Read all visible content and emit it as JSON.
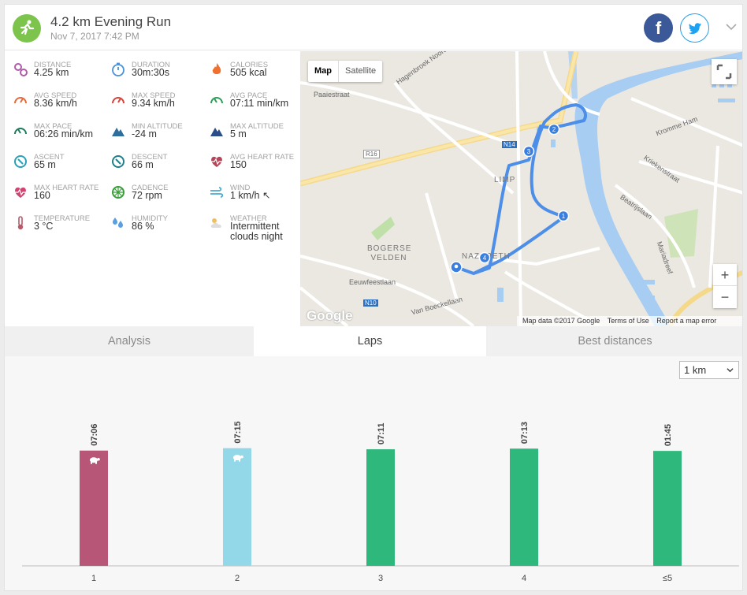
{
  "header": {
    "title": "4.2 km Evening Run",
    "subtitle": "Nov 7, 2017 7:42 PM",
    "facebook_label": "f"
  },
  "stats": [
    {
      "label": "DISTANCE",
      "value": "4.25 km",
      "icon": "distance-icon",
      "color": "#b05ba8"
    },
    {
      "label": "DURATION",
      "value": "30m:30s",
      "icon": "stopwatch-icon",
      "color": "#4a90d9"
    },
    {
      "label": "CALORIES",
      "value": "505 kcal",
      "icon": "flame-icon",
      "color": "#f07030"
    },
    {
      "label": "AVG SPEED",
      "value": "8.36 km/h",
      "icon": "speedometer-icon",
      "color": "#e86a3c"
    },
    {
      "label": "MAX SPEED",
      "value": "9.34 km/h",
      "icon": "speedometer-icon",
      "color": "#d9443a"
    },
    {
      "label": "AVG PACE",
      "value": "07:11 min/km",
      "icon": "pace-gauge-icon",
      "color": "#2e9e5a"
    },
    {
      "label": "MAX PACE",
      "value": "06:26 min/km",
      "icon": "pace-gauge-icon",
      "color": "#1f7d5e"
    },
    {
      "label": "MIN ALTITUDE",
      "value": "-24 m",
      "icon": "mountain-icon",
      "color": "#2d6e9e"
    },
    {
      "label": "MAX ALTITUDE",
      "value": "5 m",
      "icon": "mountain-icon",
      "color": "#2a4e8a"
    },
    {
      "label": "ASCENT",
      "value": "65 m",
      "icon": "compass-icon",
      "color": "#2aa0b8"
    },
    {
      "label": "DESCENT",
      "value": "66 m",
      "icon": "compass-icon",
      "color": "#1f7f8a"
    },
    {
      "label": "AVG HEART RATE",
      "value": "150",
      "icon": "heart-rate-icon",
      "color": "#b5465a"
    },
    {
      "label": "MAX HEART RATE",
      "value": "160",
      "icon": "heart-rate-icon",
      "color": "#d04470"
    },
    {
      "label": "CADENCE",
      "value": "72 rpm",
      "icon": "cadence-wheel-icon",
      "color": "#3a9e3a"
    },
    {
      "label": "WIND",
      "value": "1 km/h ↖",
      "icon": "wind-icon",
      "color": "#4aaad0"
    },
    {
      "label": "TEMPERATURE",
      "value": "3 °C",
      "icon": "thermometer-icon",
      "color": "#b85a6a"
    },
    {
      "label": "HUMIDITY",
      "value": "86 %",
      "icon": "humidity-icon",
      "color": "#5aa0e0"
    },
    {
      "label": "WEATHER",
      "value": "Intermittent\nclouds night",
      "icon": "weather-cloud-icon",
      "color": "#f0c060"
    }
  ],
  "map": {
    "map_label": "Map",
    "satellite_label": "Satellite",
    "zoom_in": "+",
    "zoom_out": "−",
    "google_logo": "Google",
    "footer": {
      "data": "Map data ©2017 Google",
      "terms": "Terms of Use",
      "report": "Report a map error"
    },
    "places": [
      "Paaiestraat",
      "Hagenbroek Noord",
      "R16",
      "N14",
      "LIMP",
      "BOGERSE VELDEN",
      "NAZARETH",
      "Eeuwfeestlaan",
      "N10",
      "Van Boeckellaan",
      "Kromme Ham",
      "Kriekenstraat",
      "Beatrijslaan",
      "Mariadreef"
    ],
    "lap_markers": [
      "1",
      "2",
      "3",
      "4"
    ]
  },
  "tabs": [
    {
      "label": "Analysis",
      "active": false
    },
    {
      "label": "Laps",
      "active": true
    },
    {
      "label": "Best distances",
      "active": false
    }
  ],
  "lap_select": {
    "value": "1 km"
  },
  "chart_data": {
    "type": "bar",
    "categories": [
      "1",
      "2",
      "3",
      "4",
      "≤5"
    ],
    "values": [
      7.1,
      7.25,
      7.18,
      7.22,
      1.75
    ],
    "data_labels": [
      "07:06",
      "07:15",
      "07:11",
      "07:13",
      "01:45"
    ],
    "colors": [
      "#b85677",
      "#93d8e8",
      "#2eb87b",
      "#2eb87b",
      "#2eb87b"
    ],
    "markers": [
      "turtle",
      "turtle",
      "",
      "",
      ""
    ],
    "ylim": [
      0,
      8
    ]
  }
}
